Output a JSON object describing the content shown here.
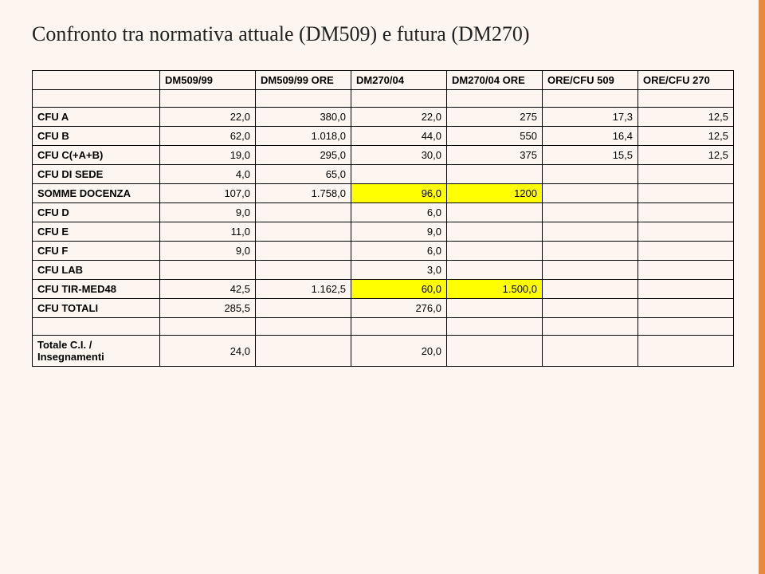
{
  "title": "Confronto tra normativa attuale (DM509) e futura (DM270)",
  "headers": [
    "",
    "DM509/99",
    "DM509/99 ORE",
    "DM270/04",
    "DM270/04 ORE",
    "ORE/CFU 509",
    "ORE/CFU 270"
  ],
  "rows": [
    {
      "label": "CFU A",
      "cells": [
        "22,0",
        "380,0",
        "22,0",
        "275",
        "17,3",
        "12,5"
      ],
      "hl": []
    },
    {
      "label": "CFU B",
      "cells": [
        "62,0",
        "1.018,0",
        "44,0",
        "550",
        "16,4",
        "12,5"
      ],
      "hl": []
    },
    {
      "label": "CFU C(+A+B)",
      "cells": [
        "19,0",
        "295,0",
        "30,0",
        "375",
        "15,5",
        "12,5"
      ],
      "hl": []
    },
    {
      "label": "CFU DI SEDE",
      "cells": [
        "4,0",
        "65,0",
        "",
        "",
        "",
        ""
      ],
      "hl": []
    },
    {
      "label": "SOMME DOCENZA",
      "cells": [
        "107,0",
        "1.758,0",
        "96,0",
        "1200",
        "",
        ""
      ],
      "hl": [
        2,
        3
      ]
    },
    {
      "label": "CFU D",
      "cells": [
        "9,0",
        "",
        "6,0",
        "",
        "",
        ""
      ],
      "hl": []
    },
    {
      "label": "CFU E",
      "cells": [
        "11,0",
        "",
        "9,0",
        "",
        "",
        ""
      ],
      "hl": []
    },
    {
      "label": "CFU F",
      "cells": [
        "9,0",
        "",
        "6,0",
        "",
        "",
        ""
      ],
      "hl": []
    },
    {
      "label": "CFU LAB",
      "cells": [
        "",
        "",
        "3,0",
        "",
        "",
        ""
      ],
      "hl": []
    },
    {
      "label": "CFU TIR-MED48",
      "cells": [
        "42,5",
        "1.162,5",
        "60,0",
        "1.500,0",
        "",
        ""
      ],
      "hl": [
        2,
        3
      ]
    },
    {
      "label": "CFU TOTALI",
      "cells": [
        "285,5",
        "",
        "276,0",
        "",
        "",
        ""
      ],
      "hl": []
    }
  ],
  "footer": {
    "label": "Totale C.I. / Insegnamenti",
    "cells": [
      "24,0",
      "",
      "20,0",
      "",
      "",
      ""
    ]
  },
  "colors": {
    "background": "#fdf6f0",
    "accent": "#e8893c",
    "highlight": "#ffff00",
    "border": "#000000",
    "text": "#222222"
  }
}
